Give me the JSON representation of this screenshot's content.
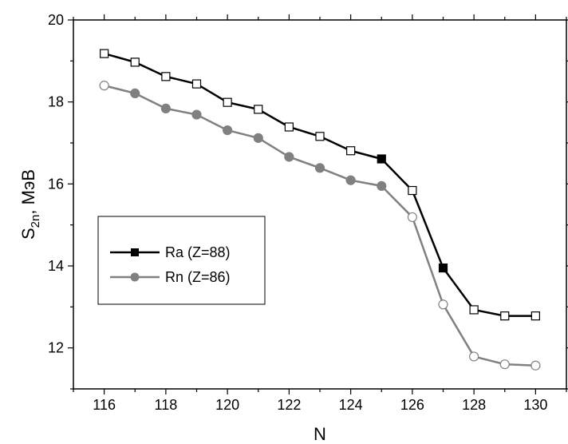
{
  "chart_data": {
    "type": "line",
    "xlabel": "N",
    "ylabel_main": "S",
    "ylabel_sub": "2n",
    "ylabel_rest": ", МэВ",
    "xlim": [
      115,
      131
    ],
    "ylim": [
      11,
      20
    ],
    "x_ticks": [
      116,
      118,
      120,
      122,
      124,
      126,
      128,
      130
    ],
    "y_ticks": [
      12,
      14,
      16,
      18,
      20
    ],
    "legend_position": "middle-left",
    "series": [
      {
        "name": "Ra (Z=88)",
        "color": "#000000",
        "marker": "square",
        "x": [
          116,
          117,
          118,
          119,
          120,
          121,
          122,
          123,
          124,
          125,
          126,
          127,
          128,
          129,
          130
        ],
        "y": [
          19.18,
          18.97,
          18.62,
          18.44,
          17.99,
          17.82,
          17.39,
          17.16,
          16.81,
          16.61,
          15.84,
          13.95,
          12.93,
          12.78,
          12.78
        ],
        "filled": [
          false,
          false,
          false,
          false,
          false,
          false,
          false,
          false,
          false,
          true,
          false,
          true,
          false,
          false,
          false
        ]
      },
      {
        "name": "Rn (Z=86)",
        "color": "#808080",
        "marker": "circle",
        "x": [
          116,
          117,
          118,
          119,
          120,
          121,
          122,
          123,
          124,
          125,
          126,
          127,
          128,
          129,
          130
        ],
        "y": [
          18.4,
          18.21,
          17.84,
          17.69,
          17.31,
          17.12,
          16.66,
          16.39,
          16.09,
          15.95,
          15.19,
          13.06,
          11.79,
          11.6,
          11.57
        ],
        "filled": [
          false,
          true,
          true,
          true,
          true,
          true,
          true,
          true,
          true,
          true,
          false,
          false,
          false,
          false,
          false
        ]
      }
    ]
  }
}
